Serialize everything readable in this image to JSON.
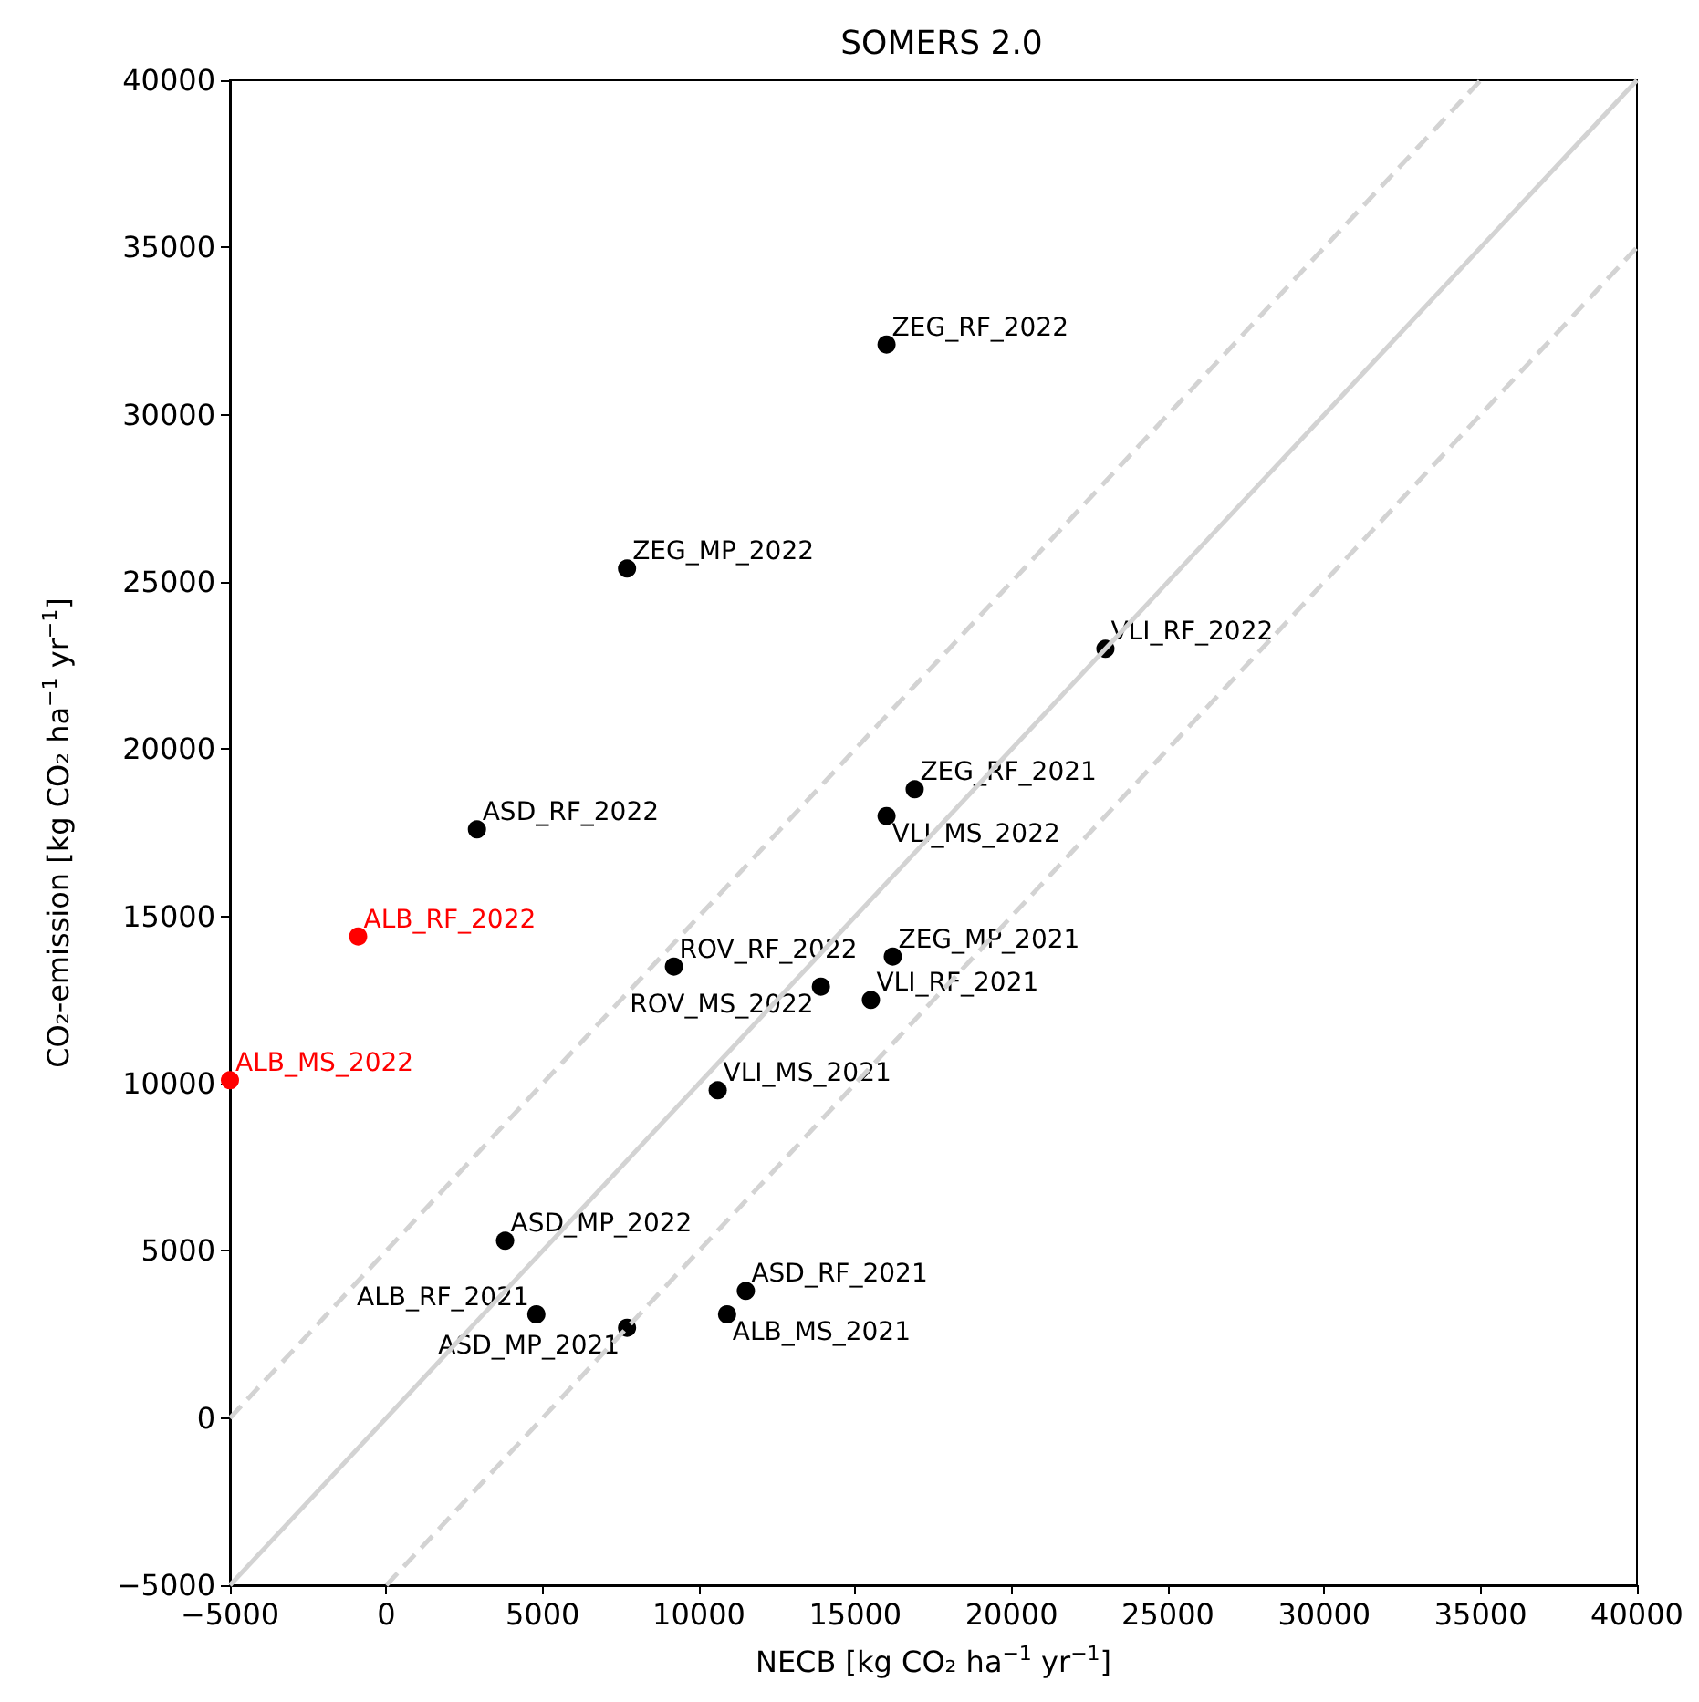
{
  "chart_data": {
    "type": "scatter",
    "title": "SOMERS 2.0",
    "xlabel": "NECB [kg CO₂ ha$^{−1}$ yr$^{−1}$]",
    "ylabel": "CO₂-emission [kg CO₂ ha$^{−1}$ yr$^{−1}$]",
    "xlim": [
      -5000,
      40000
    ],
    "ylim": [
      -5000,
      40000
    ],
    "xticks": [
      -5000,
      0,
      5000,
      10000,
      15000,
      20000,
      25000,
      30000,
      35000,
      40000
    ],
    "yticks": [
      -5000,
      0,
      5000,
      10000,
      15000,
      20000,
      25000,
      30000,
      35000,
      40000
    ],
    "grid": false,
    "legend": false,
    "marker": "circle",
    "series": [
      {
        "name": "ZEG_RF_2022",
        "color": "#000000",
        "x": [
          16000
        ],
        "values": [
          32100
        ]
      },
      {
        "name": "ZEG_MP_2022",
        "color": "#000000",
        "x": [
          7700
        ],
        "values": [
          25400
        ]
      },
      {
        "name": "VLI_RF_2022",
        "color": "#000000",
        "x": [
          23000
        ],
        "values": [
          23000
        ]
      },
      {
        "name": "ZEG_RF_2021",
        "color": "#000000",
        "x": [
          16900
        ],
        "values": [
          18800
        ]
      },
      {
        "name": "VLI_MS_2022",
        "color": "#000000",
        "x": [
          16000
        ],
        "values": [
          18000
        ]
      },
      {
        "name": "ASD_RF_2022",
        "color": "#000000",
        "x": [
          2900
        ],
        "values": [
          17600
        ]
      },
      {
        "name": "ALB_RF_2022",
        "color": "#ff0000",
        "x": [
          -900
        ],
        "values": [
          14400
        ]
      },
      {
        "name": "ALB_MS_2022",
        "color": "#ff0000",
        "x": [
          -5000
        ],
        "values": [
          10100
        ]
      },
      {
        "name": "ROV_RF_2022",
        "color": "#000000",
        "x": [
          9200
        ],
        "values": [
          13500
        ]
      },
      {
        "name": "ROV_MS_2022",
        "color": "#000000",
        "x": [
          13900
        ],
        "values": [
          12900
        ]
      },
      {
        "name": "ZEG_MP_2021",
        "color": "#000000",
        "x": [
          16200
        ],
        "values": [
          13800
        ]
      },
      {
        "name": "VLI_RF_2021",
        "color": "#000000",
        "x": [
          15500
        ],
        "values": [
          12500
        ]
      },
      {
        "name": "VLI_MS_2021",
        "color": "#000000",
        "x": [
          10600
        ],
        "values": [
          9800
        ]
      },
      {
        "name": "ASD_MP_2022",
        "color": "#000000",
        "x": [
          3800
        ],
        "values": [
          5300
        ]
      },
      {
        "name": "ASD_RF_2021",
        "color": "#000000",
        "x": [
          11500
        ],
        "values": [
          3800
        ]
      },
      {
        "name": "ALB_RF_2021",
        "color": "#000000",
        "x": [
          4800
        ],
        "values": [
          3100
        ]
      },
      {
        "name": "ALB_MS_2021",
        "color": "#000000",
        "x": [
          10900
        ],
        "values": [
          3100
        ]
      },
      {
        "name": "ASD_MP_2021",
        "color": "#000000",
        "x": [
          7700
        ],
        "values": [
          2700
        ]
      },
      {
        "type": "line",
        "color": "#d3d3d3",
        "line_style": "solid",
        "marker": "none",
        "x": [
          -5000,
          40000
        ],
        "values": [
          -5000,
          40000
        ]
      },
      {
        "type": "line",
        "color": "#d3d3d3",
        "line_style": "dashed",
        "marker": "none",
        "x": [
          -5000,
          35000
        ],
        "values": [
          0,
          40000
        ]
      },
      {
        "type": "line",
        "color": "#d3d3d3",
        "line_style": "dashed",
        "marker": "none",
        "x": [
          0,
          40000
        ],
        "values": [
          -5000,
          35000
        ]
      }
    ]
  }
}
